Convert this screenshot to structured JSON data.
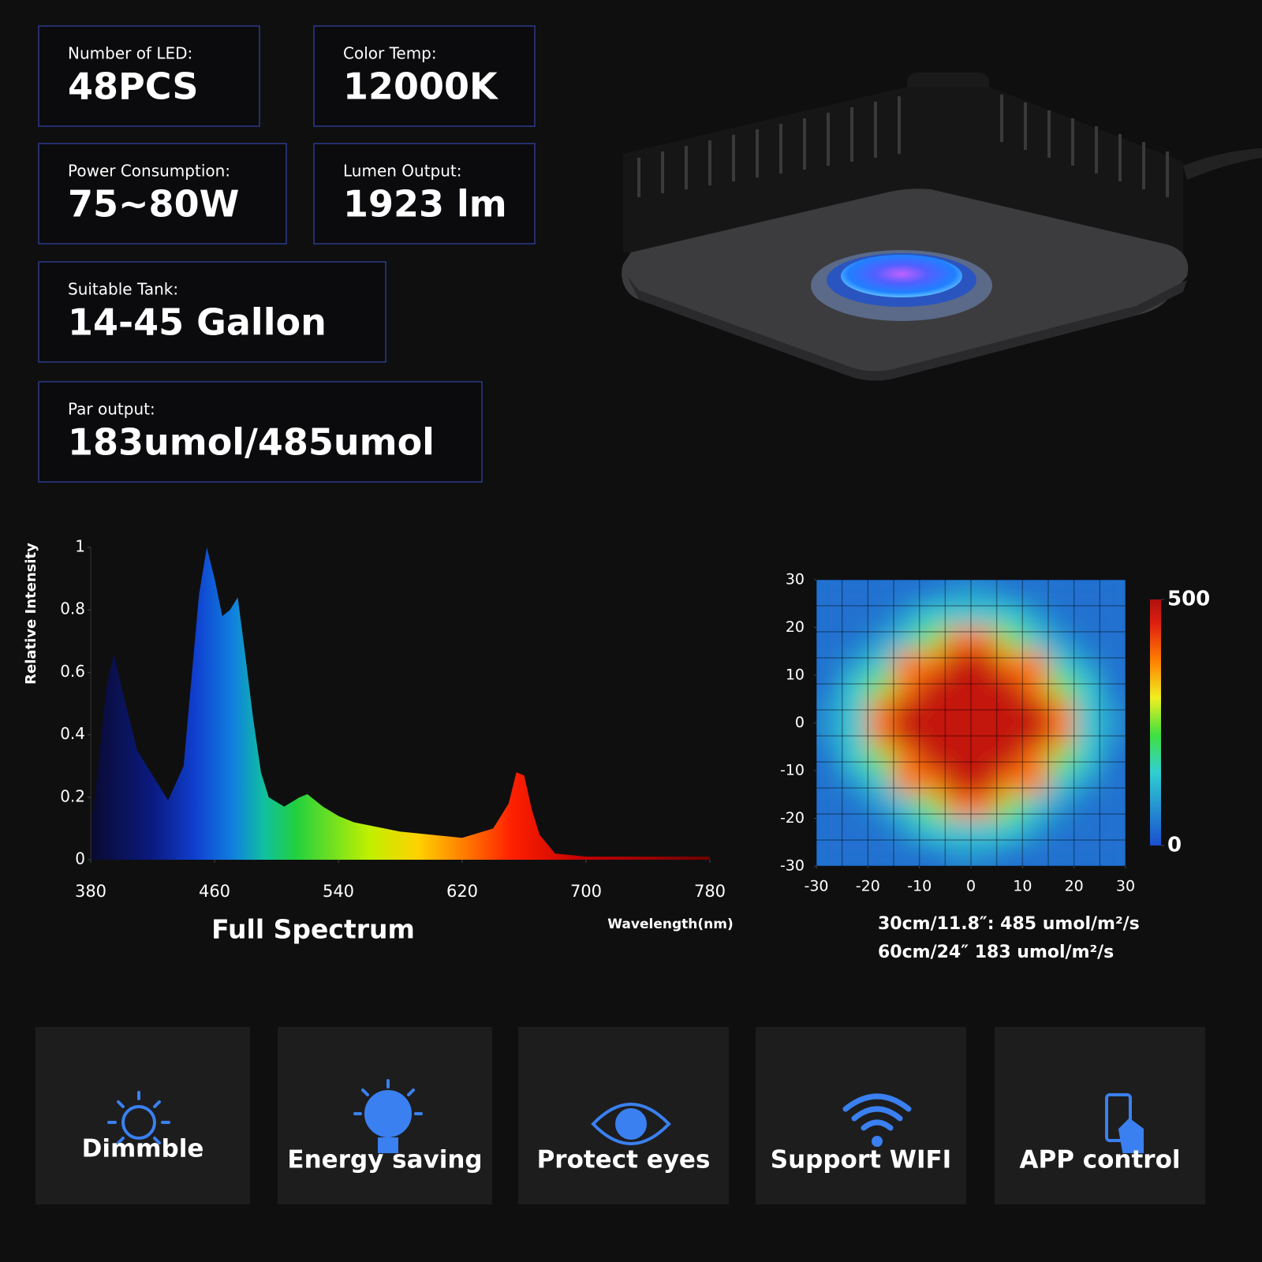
{
  "specs": [
    {
      "label": "Number of LED:",
      "value": "48PCS"
    },
    {
      "label": "Color Temp:",
      "value": "12000K"
    },
    {
      "label": "Power Consumption:",
      "value": "75~80W"
    },
    {
      "label": "Lumen Output:",
      "value": "1923 lm"
    },
    {
      "label": "Suitable Tank:",
      "value": "14-45 Gallon"
    },
    {
      "label": "Par output:",
      "value": "183umol/485umol"
    }
  ],
  "chart_data": [
    {
      "type": "area",
      "title": "Full Spectrum",
      "x_label": "Wavelength(nm)",
      "y_label": "Relative Intensity",
      "x": [
        380,
        385,
        390,
        395,
        400,
        410,
        420,
        430,
        440,
        450,
        455,
        460,
        465,
        470,
        475,
        480,
        485,
        490,
        495,
        505,
        515,
        520,
        530,
        540,
        550,
        580,
        620,
        640,
        650,
        655,
        660,
        665,
        670,
        680,
        700,
        780
      ],
      "values": [
        0.1,
        0.3,
        0.55,
        0.66,
        0.55,
        0.35,
        0.27,
        0.19,
        0.3,
        0.85,
        1.0,
        0.9,
        0.78,
        0.8,
        0.84,
        0.65,
        0.45,
        0.28,
        0.2,
        0.17,
        0.2,
        0.21,
        0.17,
        0.14,
        0.12,
        0.09,
        0.07,
        0.1,
        0.18,
        0.28,
        0.27,
        0.16,
        0.08,
        0.02,
        0.01,
        0.01
      ],
      "xlim": [
        380,
        780
      ],
      "ylim": [
        0,
        1
      ],
      "xticks": [
        380,
        460,
        540,
        620,
        700,
        780
      ],
      "yticks": [
        0,
        0.2,
        0.4,
        0.6,
        0.8,
        1
      ]
    },
    {
      "type": "heatmap",
      "xlim": [
        -30,
        30
      ],
      "ylim": [
        -30,
        30
      ],
      "xticks": [
        -30,
        -20,
        -10,
        0,
        10,
        20,
        30
      ],
      "yticks": [
        -30,
        -20,
        -10,
        0,
        10,
        20,
        30
      ],
      "clim": [
        0,
        500
      ],
      "cticks": [
        0,
        500
      ],
      "z": [
        [
          40,
          40,
          40,
          40,
          40,
          80,
          80,
          40,
          40,
          40,
          40,
          40
        ],
        [
          40,
          40,
          40,
          80,
          150,
          150,
          150,
          150,
          80,
          40,
          40,
          40
        ],
        [
          40,
          40,
          80,
          150,
          250,
          380,
          380,
          250,
          150,
          80,
          40,
          40
        ],
        [
          40,
          80,
          150,
          380,
          380,
          480,
          480,
          380,
          380,
          150,
          80,
          40
        ],
        [
          40,
          150,
          250,
          380,
          480,
          480,
          480,
          480,
          380,
          250,
          150,
          40
        ],
        [
          80,
          150,
          380,
          480,
          480,
          480,
          480,
          480,
          480,
          380,
          150,
          80
        ],
        [
          80,
          150,
          380,
          480,
          480,
          480,
          480,
          480,
          480,
          380,
          150,
          80
        ],
        [
          40,
          150,
          250,
          380,
          480,
          480,
          480,
          480,
          380,
          250,
          150,
          40
        ],
        [
          40,
          80,
          150,
          380,
          380,
          480,
          480,
          380,
          380,
          150,
          80,
          40
        ],
        [
          40,
          40,
          80,
          150,
          250,
          380,
          380,
          250,
          150,
          80,
          40,
          40
        ],
        [
          40,
          40,
          40,
          80,
          150,
          150,
          150,
          150,
          80,
          40,
          40,
          40
        ],
        [
          40,
          40,
          40,
          40,
          40,
          80,
          80,
          40,
          40,
          40,
          40,
          40
        ]
      ],
      "notes": [
        "30cm/11.8″: 485 umol/m²/s",
        "60cm/24″  183 umol/m²/s"
      ]
    }
  ],
  "features": [
    "Dimmble",
    "Energy saving",
    "Protect eyes",
    "Support WIFI",
    "APP control"
  ]
}
